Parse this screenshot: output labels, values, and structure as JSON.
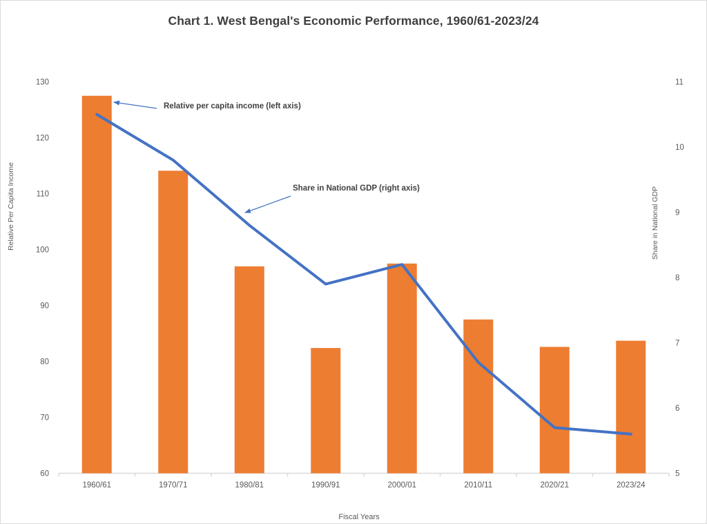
{
  "title": "Chart 1. West Bengal's Economic Performance, 1960/61-2023/24",
  "chart_data": {
    "type": "bar",
    "subtype": "combo-bar-line-dual-axis",
    "categories": [
      "1960/61",
      "1970/71",
      "1980/81",
      "1990/91",
      "2000/01",
      "2010/11",
      "2020/21",
      "2023/24"
    ],
    "series": [
      {
        "name": "Relative per capita income",
        "render": "bar",
        "axis": "left",
        "color": "#ED7D31",
        "values": [
          127.5,
          114.1,
          97.0,
          82.4,
          97.5,
          87.5,
          82.6,
          83.7
        ]
      },
      {
        "name": "Share in National GDP",
        "render": "line",
        "axis": "right",
        "color": "#4472C4",
        "values": [
          10.5,
          9.8,
          8.8,
          7.9,
          8.2,
          6.7,
          5.7,
          5.6
        ]
      }
    ],
    "xlabel": "Fiscal Years",
    "ylabel_left": "Relative Per Capita Income",
    "ylabel_right": "Share in National GDP",
    "left_ylim": [
      60,
      130
    ],
    "right_ylim": [
      5,
      11
    ],
    "left_axis_ticks": [
      130,
      120,
      110,
      100,
      90,
      80,
      70,
      60
    ],
    "right_axis_ticks": [
      11,
      10,
      9,
      8,
      7,
      6,
      5
    ],
    "grid": false,
    "legend_position": "none"
  },
  "annotations": {
    "bars": {
      "text": "Relative per capita income (left axis)"
    },
    "line": {
      "text": "Share in National GDP (right axis)"
    }
  },
  "colors": {
    "bar": "#ED7D31",
    "line": "#4472C4",
    "arrow": "#4472C4",
    "axis_text": "#595959",
    "title_text": "#3F3F3F",
    "baseline": "#D9D9D9"
  }
}
